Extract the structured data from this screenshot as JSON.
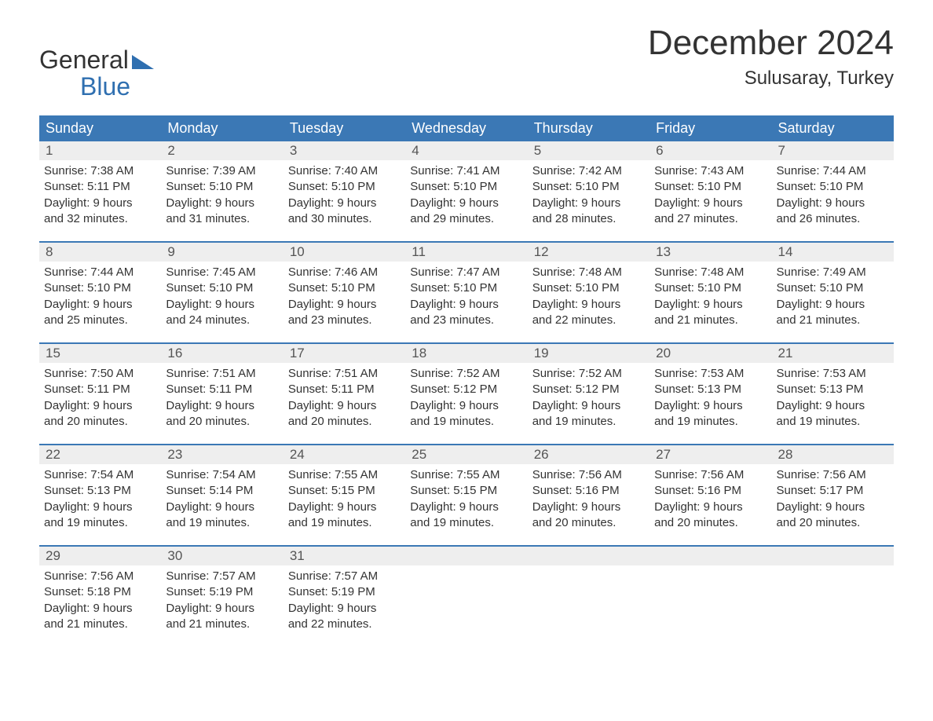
{
  "logo": {
    "line1": "General",
    "line2": "Blue"
  },
  "title": "December 2024",
  "location": "Sulusaray, Turkey",
  "colors": {
    "header_bg": "#3b78b5",
    "header_text": "#ffffff",
    "daynum_bg": "#eeeeee",
    "daynum_text": "#555555",
    "body_text": "#333333",
    "week_border": "#3b78b5",
    "logo_blue": "#2f6fb0",
    "page_bg": "#ffffff"
  },
  "day_headers": [
    "Sunday",
    "Monday",
    "Tuesday",
    "Wednesday",
    "Thursday",
    "Friday",
    "Saturday"
  ],
  "weeks": [
    [
      {
        "n": "1",
        "sunrise": "Sunrise: 7:38 AM",
        "sunset": "Sunset: 5:11 PM",
        "d1": "Daylight: 9 hours",
        "d2": "and 32 minutes."
      },
      {
        "n": "2",
        "sunrise": "Sunrise: 7:39 AM",
        "sunset": "Sunset: 5:10 PM",
        "d1": "Daylight: 9 hours",
        "d2": "and 31 minutes."
      },
      {
        "n": "3",
        "sunrise": "Sunrise: 7:40 AM",
        "sunset": "Sunset: 5:10 PM",
        "d1": "Daylight: 9 hours",
        "d2": "and 30 minutes."
      },
      {
        "n": "4",
        "sunrise": "Sunrise: 7:41 AM",
        "sunset": "Sunset: 5:10 PM",
        "d1": "Daylight: 9 hours",
        "d2": "and 29 minutes."
      },
      {
        "n": "5",
        "sunrise": "Sunrise: 7:42 AM",
        "sunset": "Sunset: 5:10 PM",
        "d1": "Daylight: 9 hours",
        "d2": "and 28 minutes."
      },
      {
        "n": "6",
        "sunrise": "Sunrise: 7:43 AM",
        "sunset": "Sunset: 5:10 PM",
        "d1": "Daylight: 9 hours",
        "d2": "and 27 minutes."
      },
      {
        "n": "7",
        "sunrise": "Sunrise: 7:44 AM",
        "sunset": "Sunset: 5:10 PM",
        "d1": "Daylight: 9 hours",
        "d2": "and 26 minutes."
      }
    ],
    [
      {
        "n": "8",
        "sunrise": "Sunrise: 7:44 AM",
        "sunset": "Sunset: 5:10 PM",
        "d1": "Daylight: 9 hours",
        "d2": "and 25 minutes."
      },
      {
        "n": "9",
        "sunrise": "Sunrise: 7:45 AM",
        "sunset": "Sunset: 5:10 PM",
        "d1": "Daylight: 9 hours",
        "d2": "and 24 minutes."
      },
      {
        "n": "10",
        "sunrise": "Sunrise: 7:46 AM",
        "sunset": "Sunset: 5:10 PM",
        "d1": "Daylight: 9 hours",
        "d2": "and 23 minutes."
      },
      {
        "n": "11",
        "sunrise": "Sunrise: 7:47 AM",
        "sunset": "Sunset: 5:10 PM",
        "d1": "Daylight: 9 hours",
        "d2": "and 23 minutes."
      },
      {
        "n": "12",
        "sunrise": "Sunrise: 7:48 AM",
        "sunset": "Sunset: 5:10 PM",
        "d1": "Daylight: 9 hours",
        "d2": "and 22 minutes."
      },
      {
        "n": "13",
        "sunrise": "Sunrise: 7:48 AM",
        "sunset": "Sunset: 5:10 PM",
        "d1": "Daylight: 9 hours",
        "d2": "and 21 minutes."
      },
      {
        "n": "14",
        "sunrise": "Sunrise: 7:49 AM",
        "sunset": "Sunset: 5:10 PM",
        "d1": "Daylight: 9 hours",
        "d2": "and 21 minutes."
      }
    ],
    [
      {
        "n": "15",
        "sunrise": "Sunrise: 7:50 AM",
        "sunset": "Sunset: 5:11 PM",
        "d1": "Daylight: 9 hours",
        "d2": "and 20 minutes."
      },
      {
        "n": "16",
        "sunrise": "Sunrise: 7:51 AM",
        "sunset": "Sunset: 5:11 PM",
        "d1": "Daylight: 9 hours",
        "d2": "and 20 minutes."
      },
      {
        "n": "17",
        "sunrise": "Sunrise: 7:51 AM",
        "sunset": "Sunset: 5:11 PM",
        "d1": "Daylight: 9 hours",
        "d2": "and 20 minutes."
      },
      {
        "n": "18",
        "sunrise": "Sunrise: 7:52 AM",
        "sunset": "Sunset: 5:12 PM",
        "d1": "Daylight: 9 hours",
        "d2": "and 19 minutes."
      },
      {
        "n": "19",
        "sunrise": "Sunrise: 7:52 AM",
        "sunset": "Sunset: 5:12 PM",
        "d1": "Daylight: 9 hours",
        "d2": "and 19 minutes."
      },
      {
        "n": "20",
        "sunrise": "Sunrise: 7:53 AM",
        "sunset": "Sunset: 5:13 PM",
        "d1": "Daylight: 9 hours",
        "d2": "and 19 minutes."
      },
      {
        "n": "21",
        "sunrise": "Sunrise: 7:53 AM",
        "sunset": "Sunset: 5:13 PM",
        "d1": "Daylight: 9 hours",
        "d2": "and 19 minutes."
      }
    ],
    [
      {
        "n": "22",
        "sunrise": "Sunrise: 7:54 AM",
        "sunset": "Sunset: 5:13 PM",
        "d1": "Daylight: 9 hours",
        "d2": "and 19 minutes."
      },
      {
        "n": "23",
        "sunrise": "Sunrise: 7:54 AM",
        "sunset": "Sunset: 5:14 PM",
        "d1": "Daylight: 9 hours",
        "d2": "and 19 minutes."
      },
      {
        "n": "24",
        "sunrise": "Sunrise: 7:55 AM",
        "sunset": "Sunset: 5:15 PM",
        "d1": "Daylight: 9 hours",
        "d2": "and 19 minutes."
      },
      {
        "n": "25",
        "sunrise": "Sunrise: 7:55 AM",
        "sunset": "Sunset: 5:15 PM",
        "d1": "Daylight: 9 hours",
        "d2": "and 19 minutes."
      },
      {
        "n": "26",
        "sunrise": "Sunrise: 7:56 AM",
        "sunset": "Sunset: 5:16 PM",
        "d1": "Daylight: 9 hours",
        "d2": "and 20 minutes."
      },
      {
        "n": "27",
        "sunrise": "Sunrise: 7:56 AM",
        "sunset": "Sunset: 5:16 PM",
        "d1": "Daylight: 9 hours",
        "d2": "and 20 minutes."
      },
      {
        "n": "28",
        "sunrise": "Sunrise: 7:56 AM",
        "sunset": "Sunset: 5:17 PM",
        "d1": "Daylight: 9 hours",
        "d2": "and 20 minutes."
      }
    ],
    [
      {
        "n": "29",
        "sunrise": "Sunrise: 7:56 AM",
        "sunset": "Sunset: 5:18 PM",
        "d1": "Daylight: 9 hours",
        "d2": "and 21 minutes."
      },
      {
        "n": "30",
        "sunrise": "Sunrise: 7:57 AM",
        "sunset": "Sunset: 5:19 PM",
        "d1": "Daylight: 9 hours",
        "d2": "and 21 minutes."
      },
      {
        "n": "31",
        "sunrise": "Sunrise: 7:57 AM",
        "sunset": "Sunset: 5:19 PM",
        "d1": "Daylight: 9 hours",
        "d2": "and 22 minutes."
      },
      null,
      null,
      null,
      null
    ]
  ]
}
